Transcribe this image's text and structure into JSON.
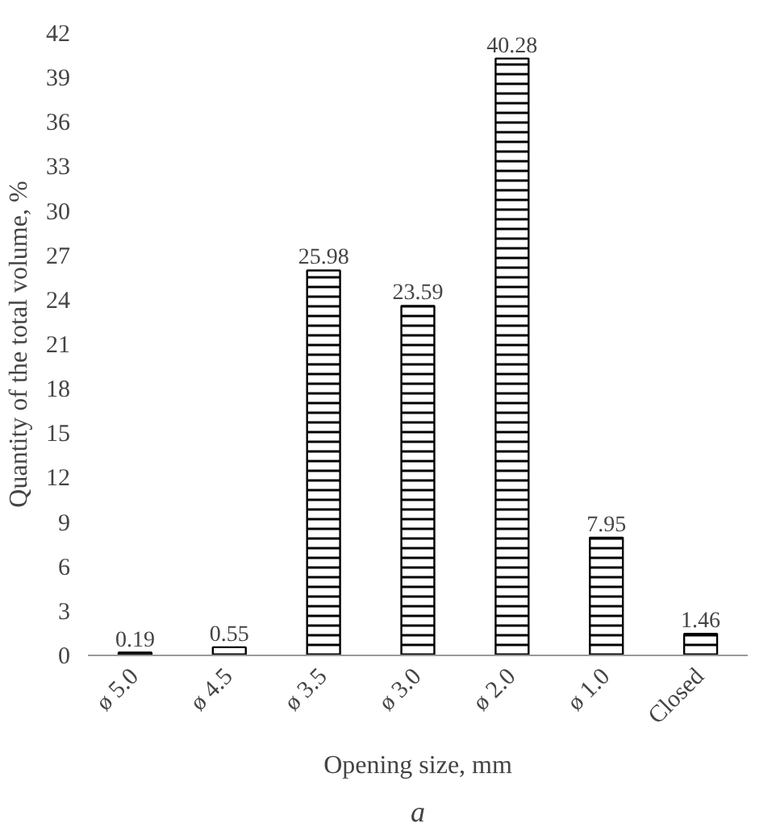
{
  "chart_data": {
    "type": "bar",
    "xlabel": "Opening size, mm",
    "ylabel": "Quantity of the total volume, %",
    "categories": [
      "ø 5.0",
      "ø 4.5",
      "ø 3.5",
      "ø 3.0",
      "ø 2.0",
      "ø 1.0",
      "Closed"
    ],
    "values": [
      0.19,
      0.55,
      25.98,
      23.59,
      40.28,
      7.95,
      1.46
    ],
    "color": "#ffffff",
    "data_labels": true,
    "grid": false,
    "ylim": [
      0,
      42
    ],
    "yticks": [
      0,
      3,
      6,
      9,
      12,
      15,
      18,
      21,
      24,
      27,
      30,
      33,
      36,
      39,
      42
    ],
    "annotations": [
      "a"
    ]
  }
}
